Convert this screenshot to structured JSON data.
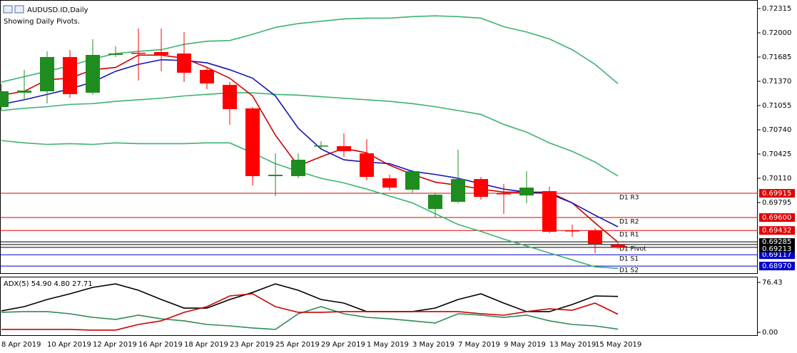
{
  "chart_data": [
    {
      "type": "candlestick",
      "title": "AUDUSD.ID,Daily",
      "subtitle": "Showing Daily Pivots.",
      "categories": [
        "8 Apr 2019",
        null,
        "10 Apr 2019",
        null,
        "12 Apr 2019",
        null,
        "16 Apr 2019",
        null,
        "18 Apr 2019",
        null,
        "23 Apr 2019",
        null,
        "25 Apr 2019",
        null,
        "29 Apr 2019",
        null,
        "1 May 2019",
        null,
        "3 May 2019",
        null,
        "7 May 2019",
        null,
        "9 May 2019",
        null,
        "13 May 2019",
        null,
        "15 May 2019",
        null
      ],
      "candles": {
        "open": [
          0.71036,
          0.71222,
          0.7124,
          0.71685,
          0.71222,
          0.71713,
          0.7174,
          0.7175,
          0.71731,
          0.71518,
          0.71323,
          0.71018,
          0.70138,
          0.70138,
          0.70527,
          0.70527,
          0.70434,
          0.7011,
          0.69962,
          0.69711,
          0.69804,
          0.701,
          0.69915,
          0.69887,
          0.69943,
          0.69433,
          0.69433,
          0.69248
        ],
        "high": [
          0.71333,
          0.71518,
          0.71759,
          0.71777,
          0.71916,
          0.71824,
          0.72055,
          0.72055,
          0.72009,
          0.71546,
          0.71361,
          0.71036,
          0.70434,
          0.70434,
          0.70592,
          0.70693,
          0.70619,
          0.70156,
          0.70221,
          0.69924,
          0.7048,
          0.70128,
          0.70036,
          0.70202,
          0.69999,
          0.69508,
          0.69461,
          0.69276
        ],
        "low": [
          0.7099,
          0.71129,
          0.71083,
          0.71157,
          0.71194,
          0.71685,
          0.71379,
          0.715,
          0.71361,
          0.71268,
          0.70805,
          0.70017,
          0.69878,
          0.7011,
          0.7048,
          0.70388,
          0.70082,
          0.69952,
          0.69924,
          0.696,
          0.69786,
          0.69832,
          0.69647,
          0.69786,
          0.69396,
          0.6935,
          0.69137,
          0.69193
        ],
        "close": [
          0.7124,
          0.71249,
          0.71685,
          0.71203,
          0.71713,
          0.71731,
          0.71731,
          0.71713,
          0.71481,
          0.71342,
          0.71008,
          0.70138,
          0.70156,
          0.70351,
          0.70536,
          0.70462,
          0.70128,
          0.69989,
          0.70202,
          0.69897,
          0.701,
          0.69869,
          0.69906,
          0.69989,
          0.69415,
          0.69424,
          0.69257,
          0.69211
        ]
      },
      "up_color": "#1e8c1e",
      "down_color": "#ff0000",
      "series": [
        {
          "color": "#3cb371",
          "values": [
            0.7136,
            0.7143,
            0.715,
            0.7157,
            0.7166,
            0.7173,
            0.7176,
            0.7178,
            0.7185,
            0.7189,
            0.719,
            0.7198,
            0.7207,
            0.7212,
            0.7215,
            0.7218,
            0.7219,
            0.7219,
            0.7221,
            0.7222,
            0.7221,
            0.7219,
            0.7208,
            0.7201,
            0.7192,
            0.7178,
            0.7159,
            0.7134
          ]
        },
        {
          "color": "#3cb371",
          "values": [
            0.7099,
            0.7102,
            0.7104,
            0.7107,
            0.7108,
            0.7111,
            0.7113,
            0.7115,
            0.7118,
            0.712,
            0.7122,
            0.7122,
            0.712,
            0.7119,
            0.7117,
            0.7115,
            0.7113,
            0.7111,
            0.7108,
            0.7104,
            0.7099,
            0.7094,
            0.7081,
            0.7071,
            0.7057,
            0.7046,
            0.7032,
            0.7014
          ]
        },
        {
          "color": "#3cb371",
          "values": [
            0.706,
            0.7057,
            0.7055,
            0.7056,
            0.7055,
            0.7057,
            0.7056,
            0.7056,
            0.7056,
            0.7057,
            0.7057,
            0.7044,
            0.703,
            0.702,
            0.7011,
            0.7005,
            0.6997,
            0.6988,
            0.6979,
            0.6965,
            0.6951,
            0.6942,
            0.6932,
            0.6923,
            0.6914,
            0.6905,
            0.6896,
            0.6894
          ]
        },
        {
          "color": "#d00000",
          "values": [
            0.7119,
            0.7124,
            0.7139,
            0.7141,
            0.7152,
            0.7155,
            0.7171,
            0.7171,
            0.7167,
            0.7155,
            0.7141,
            0.7118,
            0.7067,
            0.7027,
            0.7039,
            0.705,
            0.7044,
            0.7028,
            0.7016,
            0.7006,
            0.7002,
            0.6997,
            0.6993,
            0.6993,
            0.6993,
            0.6979,
            0.6953,
            0.6928
          ]
        },
        {
          "color": "#1414b4",
          "values": [
            0.7107,
            0.7113,
            0.712,
            0.7127,
            0.7136,
            0.715,
            0.7159,
            0.7165,
            0.7164,
            0.7161,
            0.7152,
            0.7141,
            0.7118,
            0.7076,
            0.7049,
            0.7035,
            0.7032,
            0.703,
            0.702,
            0.7016,
            0.7011,
            0.7004,
            0.6997,
            0.6993,
            0.6991,
            0.6979,
            0.6963,
            0.6948
          ]
        }
      ],
      "levels": [
        {
          "name": "D1 R3",
          "value": 0.69915,
          "label": "0.69915",
          "color": "#dd0000"
        },
        {
          "name": "D1 R2",
          "value": 0.696,
          "label": "0.69600",
          "color": "#dd0000"
        },
        {
          "name": "D1 R1",
          "value": 0.69432,
          "label": "0.69432",
          "color": "#dd0000"
        },
        {
          "name": "D1 Pivot",
          "value": 0.6925,
          "color": "#000000"
        },
        {
          "name": "D1 S1",
          "value": 0.69117,
          "label": "0.69117",
          "color": "#0000cc"
        },
        {
          "name": "D1 S2",
          "value": 0.6897,
          "label": "0.68970",
          "color": "#0000cc"
        }
      ],
      "price_lines": [
        0.69285,
        0.69213
      ],
      "ylim": [
        0.68878,
        0.72426
      ],
      "yticks": [
        0.72315,
        {
          "value": 0.72,
          "label": "0.72000"
        },
        0.71685,
        {
          "value": 0.7137,
          "label": "0.71370"
        },
        0.71055,
        {
          "value": 0.7074,
          "label": "0.70740"
        },
        0.70425,
        {
          "value": 0.7011,
          "label": "0.70110"
        },
        0.69795
      ]
    },
    {
      "type": "line",
      "title": "ADX(5) 54.90 4.80 27.71",
      "series": [
        {
          "color": "#000000",
          "values": [
            32.8,
            39.3,
            50.2,
            59.0,
            68.8,
            74.2,
            64.4,
            50.2,
            37.1,
            37.1,
            50.2,
            61.1,
            74.2,
            64.4,
            50.2,
            44.8,
            31.7,
            31.7,
            31.7,
            37.1,
            50.2,
            59.0,
            44.8,
            31.7,
            31.7,
            42.6,
            55.7,
            54.9
          ]
        },
        {
          "color": "#2e8b57",
          "values": [
            30.6,
            31.7,
            31.7,
            28.4,
            22.9,
            19.7,
            26.2,
            20.7,
            17.5,
            12.0,
            9.8,
            6.6,
            4.4,
            28.4,
            39.3,
            28.4,
            22.9,
            20.7,
            17.5,
            14.2,
            28.4,
            26.2,
            22.9,
            26.2,
            17.5,
            12.0,
            9.8,
            4.8
          ]
        },
        {
          "color": "#cc0000",
          "values": [
            4.4,
            4.4,
            4.4,
            4.4,
            3.3,
            3.3,
            12.0,
            17.5,
            30.6,
            39.3,
            55.7,
            59.0,
            39.3,
            30.6,
            30.6,
            31.7,
            31.7,
            31.7,
            31.7,
            31.7,
            31.7,
            28.4,
            26.2,
            31.7,
            36.0,
            33.8,
            44.8,
            27.7
          ]
        }
      ],
      "ylim": [
        -4.4,
        85.2
      ],
      "yticks": [
        76.43,
        {
          "value": 0,
          "label": "0.00"
        }
      ]
    }
  ]
}
